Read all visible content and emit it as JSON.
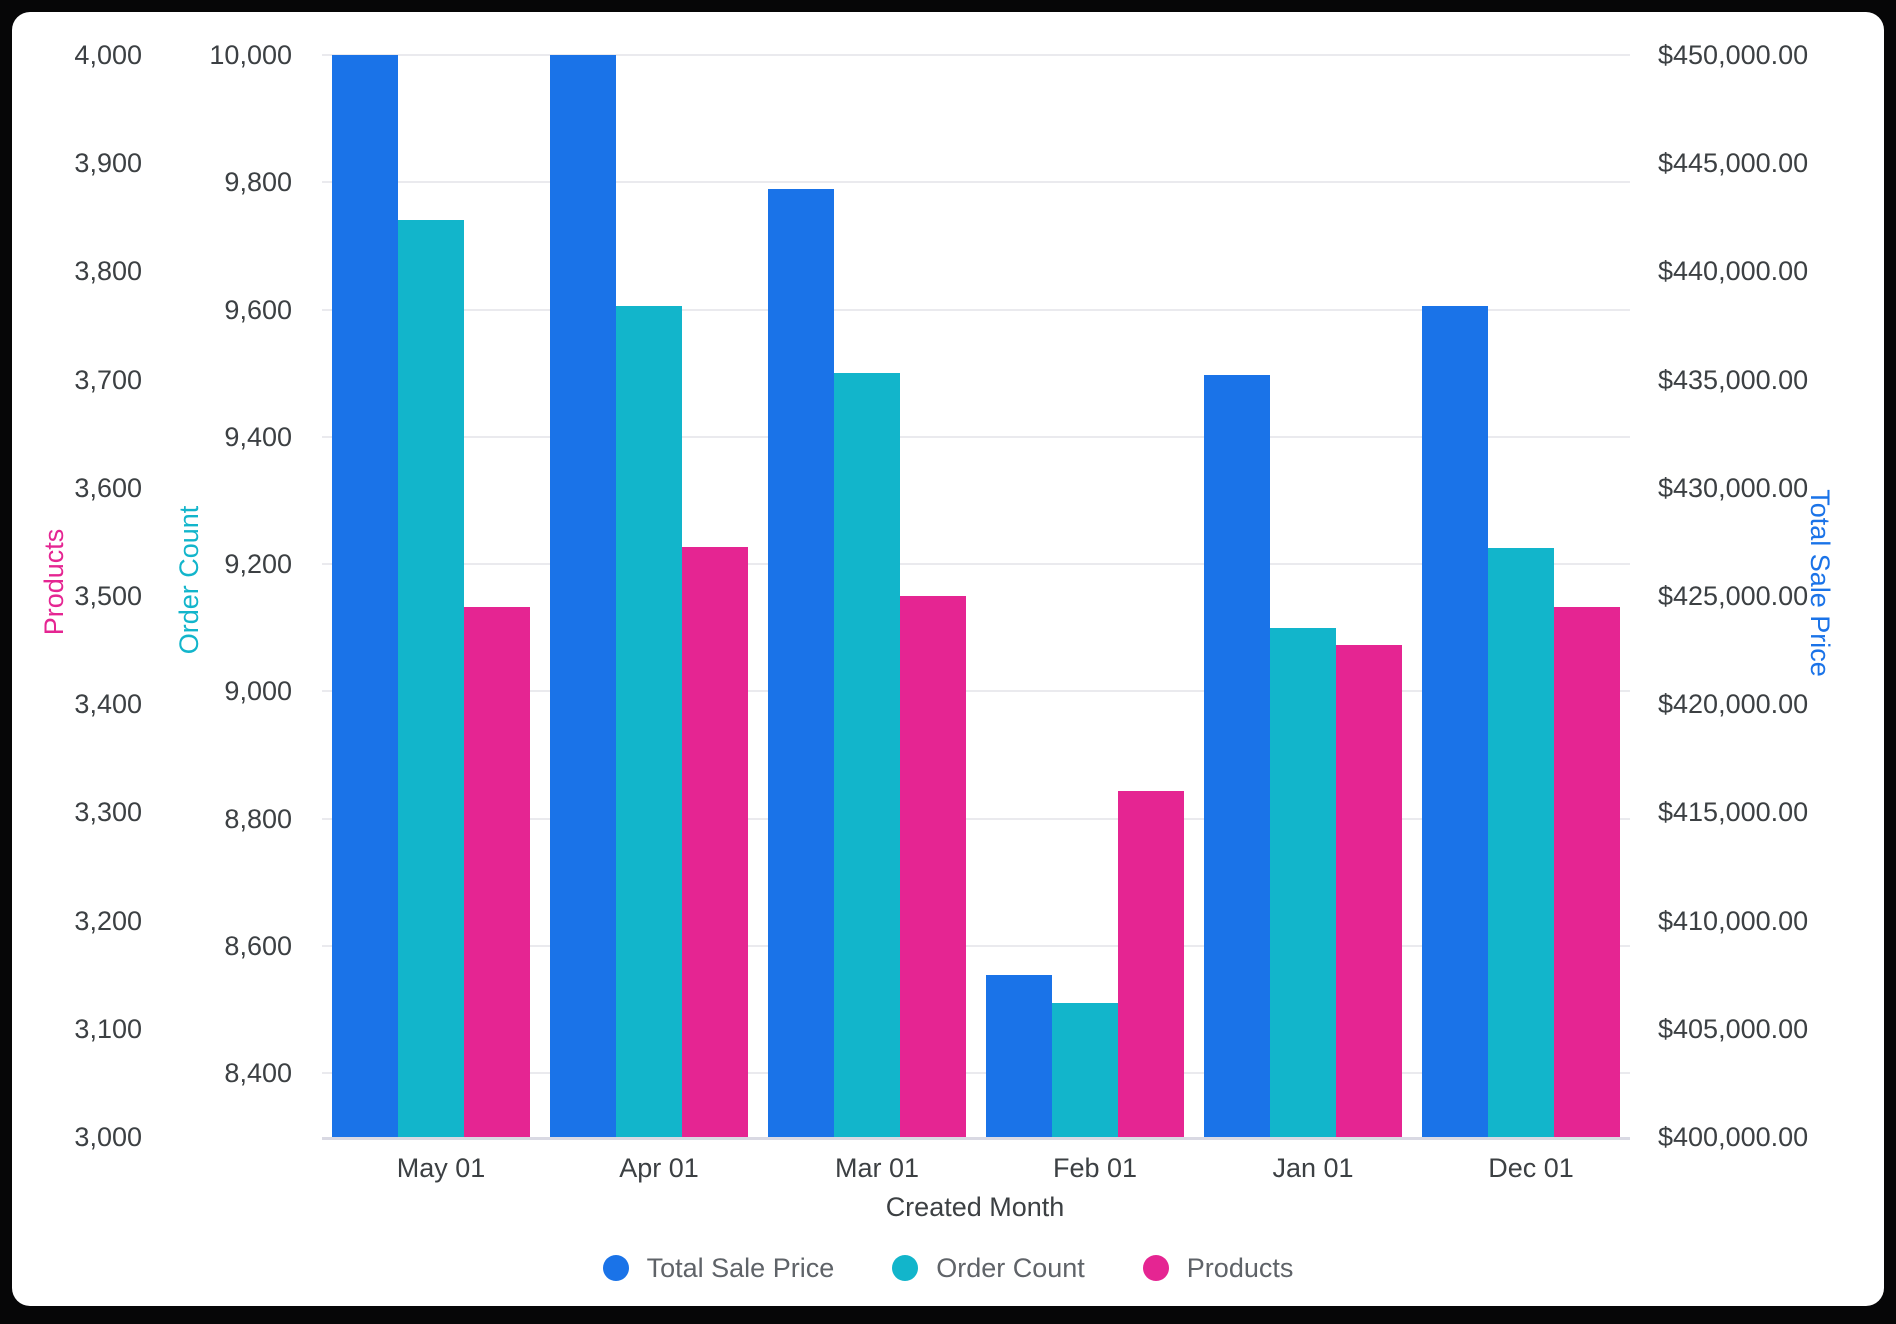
{
  "chart_data": {
    "type": "grouped_bar",
    "title": "",
    "x_axis": {
      "title": "Created Month",
      "categories": [
        "May 01",
        "Apr 01",
        "Mar 01",
        "Feb 01",
        "Jan 01",
        "Dec 01"
      ]
    },
    "grid": "horizontal gridlines follow order-count ticks",
    "legend_position": "bottom-center",
    "axes": {
      "products": {
        "title": "Products",
        "side": "left-outer",
        "color": "#E52592",
        "min": 3000,
        "max": 4000,
        "ticks": [
          {
            "value": 4000,
            "label": "4,000"
          },
          {
            "value": 3900,
            "label": "3,900"
          },
          {
            "value": 3800,
            "label": "3,800"
          },
          {
            "value": 3700,
            "label": "3,700"
          },
          {
            "value": 3600,
            "label": "3,600"
          },
          {
            "value": 3500,
            "label": "3,500"
          },
          {
            "value": 3400,
            "label": "3,400"
          },
          {
            "value": 3300,
            "label": "3,300"
          },
          {
            "value": 3200,
            "label": "3,200"
          },
          {
            "value": 3100,
            "label": "3,100"
          },
          {
            "value": 3000,
            "label": "3,000"
          }
        ]
      },
      "order_count": {
        "title": "Order Count",
        "side": "left-inner",
        "color": "#12B5CB",
        "min": 8300,
        "max": 10000,
        "gridlines": true,
        "ticks": [
          {
            "value": 10000,
            "label": "10,000"
          },
          {
            "value": 9800,
            "label": "9,800"
          },
          {
            "value": 9600,
            "label": "9,600"
          },
          {
            "value": 9400,
            "label": "9,400"
          },
          {
            "value": 9200,
            "label": "9,200"
          },
          {
            "value": 9000,
            "label": "9,000"
          },
          {
            "value": 8800,
            "label": "8,800"
          },
          {
            "value": 8600,
            "label": "8,600"
          },
          {
            "value": 8400,
            "label": "8,400"
          }
        ]
      },
      "total_sale_price": {
        "title": "Total Sale Price",
        "side": "right",
        "color": "#1A73E8",
        "min": 400000,
        "max": 450000,
        "ticks": [
          {
            "value": 450000,
            "label": "$450,000.00"
          },
          {
            "value": 445000,
            "label": "$445,000.00"
          },
          {
            "value": 440000,
            "label": "$440,000.00"
          },
          {
            "value": 435000,
            "label": "$435,000.00"
          },
          {
            "value": 430000,
            "label": "$430,000.00"
          },
          {
            "value": 425000,
            "label": "$425,000.00"
          },
          {
            "value": 420000,
            "label": "$420,000.00"
          },
          {
            "value": 415000,
            "label": "$415,000.00"
          },
          {
            "value": 410000,
            "label": "$410,000.00"
          },
          {
            "value": 405000,
            "label": "$405,000.00"
          },
          {
            "value": 400000,
            "label": "$400,000.00"
          }
        ]
      }
    },
    "series": [
      {
        "key": "total-sale-price",
        "name": "Total Sale Price",
        "color": "#1A73E8",
        "axis": "total_sale_price",
        "values": [
          450000,
          450000,
          443800,
          407500,
          435200,
          438400
        ]
      },
      {
        "key": "order-count",
        "name": "Order Count",
        "color": "#12B5CB",
        "axis": "order_count",
        "values": [
          9740,
          9605,
          9500,
          8510,
          9100,
          9225
        ]
      },
      {
        "key": "products",
        "name": "Products",
        "color": "#E52592",
        "axis": "products",
        "values": [
          3490,
          3545,
          3500,
          3320,
          3455,
          3490
        ]
      }
    ],
    "legend": [
      {
        "label": "Total Sale Price",
        "color": "#1A73E8"
      },
      {
        "label": "Order Count",
        "color": "#12B5CB"
      },
      {
        "label": "Products",
        "color": "#E52592"
      }
    ]
  }
}
